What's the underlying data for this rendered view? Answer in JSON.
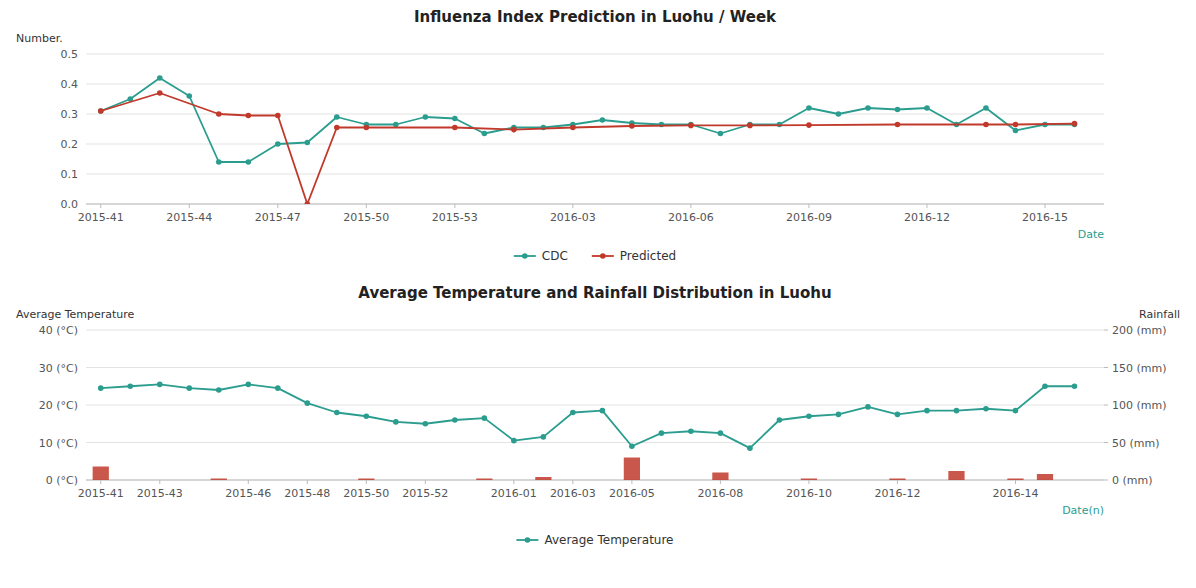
{
  "chart_data": [
    {
      "type": "line",
      "title": "Influenza Index Prediction in Luohu / Week",
      "ylabel": "Number.",
      "xlabel": "Date",
      "xlim": [
        -0.5,
        34
      ],
      "xticks": [
        {
          "value": 0,
          "label": "2015-41"
        },
        {
          "value": 3,
          "label": "2015-44"
        },
        {
          "value": 6,
          "label": "2015-47"
        },
        {
          "value": 9,
          "label": "2015-50"
        },
        {
          "value": 12,
          "label": "2015-53"
        },
        {
          "value": 16,
          "label": "2016-03"
        },
        {
          "value": 20,
          "label": "2016-06"
        },
        {
          "value": 24,
          "label": "2016-09"
        },
        {
          "value": 28,
          "label": "2016-12"
        },
        {
          "value": 32,
          "label": "2016-15"
        }
      ],
      "ylim": [
        0,
        0.5
      ],
      "yticks": [
        {
          "value": 0,
          "label": "0.0"
        },
        0.1,
        0.2,
        0.3,
        0.4,
        0.5
      ],
      "grid": true,
      "legend": "bottom",
      "series": [
        {
          "name": "CDC",
          "type": "line",
          "color": "#2a9d8f",
          "marker": "circle",
          "x": [
            0,
            1,
            2,
            3,
            4,
            5,
            6,
            7,
            8,
            9,
            10,
            11,
            12,
            13,
            14,
            15,
            16,
            17,
            18,
            19,
            20,
            21,
            22,
            23,
            24,
            25,
            26,
            27,
            28,
            29,
            30,
            31,
            32,
            33
          ],
          "values": [
            0.31,
            0.35,
            0.42,
            0.36,
            0.14,
            0.14,
            0.2,
            0.205,
            0.29,
            0.265,
            0.265,
            0.29,
            0.285,
            0.235,
            0.255,
            0.255,
            0.265,
            0.28,
            0.27,
            0.265,
            0.265,
            0.235,
            0.265,
            0.265,
            0.32,
            0.3,
            0.32,
            0.315,
            0.32,
            0.265,
            0.32,
            0.245,
            0.265,
            0.265
          ]
        },
        {
          "name": "Predicted",
          "type": "line",
          "color": "#c0392b",
          "marker": "circle",
          "x": [
            0,
            2,
            4,
            5,
            6,
            7,
            8,
            9,
            12,
            14,
            16,
            18,
            20,
            22,
            24,
            27,
            30,
            31,
            33
          ],
          "values": [
            0.31,
            0.37,
            0.3,
            0.295,
            0.295,
            0.0,
            0.255,
            0.255,
            0.255,
            0.248,
            0.255,
            0.26,
            0.262,
            0.262,
            0.263,
            0.265,
            0.265,
            0.265,
            0.268
          ]
        }
      ]
    },
    {
      "type": "line",
      "title": "Average Temperature and Rainfall Distribution in Luohu",
      "ylabel": "Average Temperature",
      "y2label": "Rainfall",
      "xlabel": "Date(n)",
      "xlim": [
        -0.5,
        34
      ],
      "xticks": [
        {
          "value": 0,
          "label": "2015-41"
        },
        {
          "value": 2,
          "label": "2015-43"
        },
        {
          "value": 5,
          "label": "2015-46"
        },
        {
          "value": 7,
          "label": "2015-48"
        },
        {
          "value": 9,
          "label": "2015-50"
        },
        {
          "value": 11,
          "label": "2015-52"
        },
        {
          "value": 14,
          "label": "2016-01"
        },
        {
          "value": 16,
          "label": "2016-03"
        },
        {
          "value": 18,
          "label": "2016-05"
        },
        {
          "value": 21,
          "label": "2016-08"
        },
        {
          "value": 24,
          "label": "2016-10"
        },
        {
          "value": 27,
          "label": "2016-12"
        },
        {
          "value": 31,
          "label": "2016-14"
        }
      ],
      "ylim": [
        0,
        40
      ],
      "yticks": [
        {
          "value": 0,
          "label": "0 (°C)"
        },
        {
          "value": 10,
          "label": "10 (°C)"
        },
        {
          "value": 20,
          "label": "20 (°C)"
        },
        {
          "value": 30,
          "label": "30 (°C)"
        },
        {
          "value": 40,
          "label": "40 (°C)"
        }
      ],
      "y2lim": [
        0,
        200
      ],
      "y2ticks": [
        {
          "value": 0,
          "label": "0 (mm)"
        },
        {
          "value": 50,
          "label": "50 (mm)"
        },
        {
          "value": 100,
          "label": "100 (mm)"
        },
        {
          "value": 150,
          "label": "150 (mm)"
        },
        {
          "value": 200,
          "label": "200 (mm)"
        }
      ],
      "grid": true,
      "legend": "bottom",
      "series": [
        {
          "type": "bar",
          "axis": "y2",
          "color": "#c0392b",
          "x": [
            0,
            4,
            9,
            13,
            15,
            18,
            21,
            24,
            27,
            29,
            31,
            32
          ],
          "values": [
            18,
            2,
            2,
            2,
            4,
            30,
            10,
            2,
            2,
            12,
            2,
            8
          ]
        },
        {
          "name": "Average Temperature",
          "type": "line",
          "axis": "y",
          "color": "#2a9d8f",
          "marker": "circle",
          "x": [
            0,
            1,
            2,
            3,
            4,
            5,
            6,
            7,
            8,
            9,
            10,
            11,
            12,
            13,
            14,
            15,
            16,
            17,
            18,
            19,
            20,
            21,
            22,
            23,
            24,
            25,
            26,
            27,
            28,
            29,
            30,
            31,
            32,
            33
          ],
          "values": [
            24.5,
            25.0,
            25.5,
            24.5,
            24.0,
            25.5,
            24.5,
            20.5,
            18.0,
            17.0,
            15.5,
            15.0,
            16.0,
            16.5,
            10.5,
            11.5,
            18.0,
            18.5,
            9.0,
            12.5,
            13.0,
            12.5,
            8.5,
            16.0,
            17.0,
            17.5,
            19.5,
            17.5,
            18.5,
            18.5,
            19.0,
            18.5,
            25.0,
            25.0
          ]
        }
      ]
    }
  ]
}
